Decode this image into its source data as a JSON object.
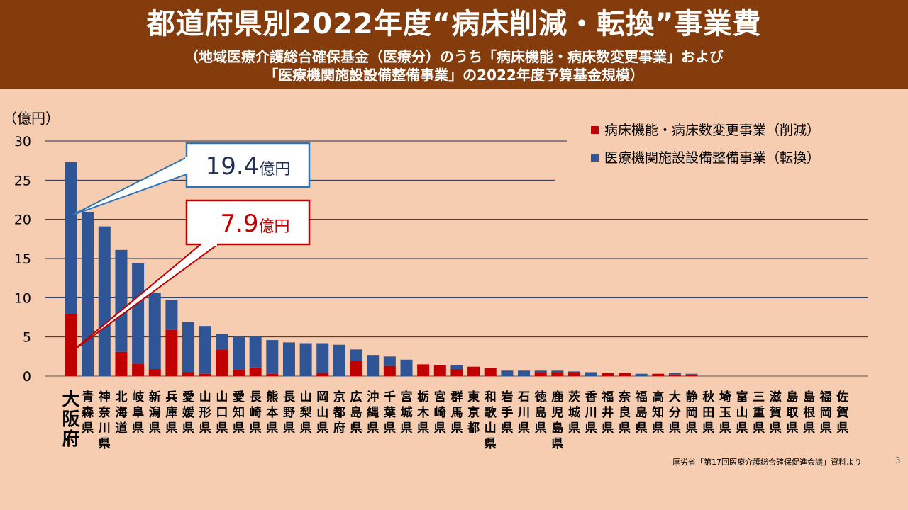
{
  "header": {
    "title": "都道府県別2022年度“病床削減・転換”事業費",
    "subtitle_line1": "（地域医療介護総合確保基金（医療分）のうち「病床機能・病床数変更事業」および",
    "subtitle_line2": "「医療機関施設設備整備事業」の2022年度予算基金規模）"
  },
  "colors": {
    "header_bg": "#843c0c",
    "background": "#f6cdb0",
    "reduction": "#c00000",
    "conversion": "#2f5597",
    "osaka_label": "#c00000"
  },
  "chart_data": {
    "type": "bar",
    "stacked": true,
    "y_unit_label": "（億円）",
    "ylim": [
      0,
      30
    ],
    "yticks": [
      0,
      5,
      10,
      15,
      20,
      25,
      30
    ],
    "grid": true,
    "legend_position": "top-right",
    "categories": [
      "大阪府",
      "青森県",
      "神奈川県",
      "北海道",
      "岐阜県",
      "新潟県",
      "兵庫県",
      "愛媛県",
      "山形県",
      "山口県",
      "愛知県",
      "長崎県",
      "熊本県",
      "長野県",
      "山梨県",
      "岡山県",
      "京都府",
      "広島県",
      "沖縄県",
      "千葉県",
      "宮城県",
      "栃木県",
      "宮崎県",
      "群馬県",
      "東京都",
      "和歌山県",
      "岩手県",
      "石川県",
      "徳島県",
      "鹿児島県",
      "茨城県",
      "香川県",
      "福井県",
      "奈良県",
      "福島県",
      "高知県",
      "大分県",
      "静岡県",
      "秋田県",
      "埼玉県",
      "富山県",
      "三重県",
      "滋賀県",
      "島取県",
      "島根県",
      "福岡県",
      "佐賀県"
    ],
    "series": [
      {
        "name": "病床機能・病床数変更事業（削減）",
        "values": [
          7.9,
          0,
          0,
          3.1,
          1.6,
          0.9,
          5.9,
          0.5,
          0.3,
          3.4,
          0.8,
          1.1,
          0.3,
          0,
          0,
          0.4,
          0,
          1.9,
          0,
          1.3,
          0,
          1.5,
          1.4,
          0.9,
          1.2,
          1.0,
          0,
          0,
          0.5,
          0.5,
          0.5,
          0,
          0.4,
          0.4,
          0,
          0.3,
          0.2,
          0.2,
          0,
          0,
          0,
          0,
          0,
          0,
          0,
          0,
          0
        ]
      },
      {
        "name": "医療機関施設設備整備事業（転換）",
        "values": [
          19.4,
          20.9,
          19.1,
          13.0,
          12.8,
          9.7,
          3.8,
          6.4,
          6.1,
          2.0,
          4.3,
          4.0,
          4.3,
          4.3,
          4.2,
          3.8,
          4.0,
          1.5,
          2.7,
          1.2,
          2.1,
          0,
          0,
          0.5,
          0,
          0,
          0.7,
          0.7,
          0.2,
          0.2,
          0.1,
          0.5,
          0,
          0,
          0.3,
          0,
          0.2,
          0.1,
          0,
          0,
          0,
          0,
          0,
          0,
          0,
          0,
          0
        ]
      }
    ],
    "callouts": [
      {
        "value": "19.4",
        "unit": "億円",
        "series": "conversion",
        "category": "大阪府"
      },
      {
        "value": "7.9",
        "unit": "億円",
        "series": "reduction",
        "category": "大阪府"
      }
    ]
  },
  "footer": {
    "source": "厚労省「第17回医療介護総合確保促進会議」資料より",
    "page": "3"
  }
}
